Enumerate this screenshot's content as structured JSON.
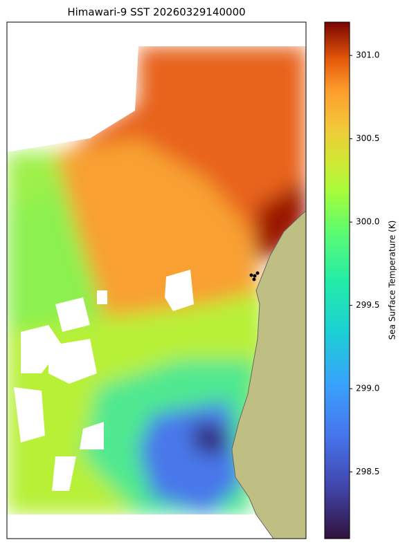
{
  "title": "Himawari-9 SST 20260329140000",
  "colorbar": {
    "label": "Sea Surface Temperature (K)",
    "lim": [
      298.1,
      301.2
    ],
    "ticks": [
      298.5,
      {
        "value": 299,
        "label": "299.0"
      },
      299.5,
      {
        "value": 300,
        "label": "300.0"
      },
      300.5,
      {
        "value": 301,
        "label": "301.0"
      }
    ]
  }
}
